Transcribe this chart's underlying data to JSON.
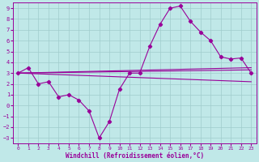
{
  "xlabel": "Windchill (Refroidissement éolien,°C)",
  "background_color": "#c0e8e8",
  "grid_color": "#a0cccc",
  "line_color": "#990099",
  "xlim": [
    -0.5,
    23.5
  ],
  "ylim": [
    -3.5,
    9.5
  ],
  "yticks": [
    -3,
    -2,
    -1,
    0,
    1,
    2,
    3,
    4,
    5,
    6,
    7,
    8,
    9
  ],
  "xticks": [
    0,
    1,
    2,
    3,
    4,
    5,
    6,
    7,
    8,
    9,
    10,
    11,
    12,
    13,
    14,
    15,
    16,
    17,
    18,
    19,
    20,
    21,
    22,
    23
  ],
  "main_x": [
    0,
    1,
    2,
    3,
    4,
    5,
    6,
    7,
    8,
    9,
    10,
    11,
    12,
    13,
    14,
    15,
    16,
    17,
    18,
    19,
    20,
    21,
    22,
    23
  ],
  "main_y": [
    3.0,
    3.5,
    2.0,
    2.2,
    0.8,
    1.0,
    0.5,
    -0.5,
    -3.0,
    -1.5,
    1.5,
    3.0,
    3.0,
    5.5,
    7.5,
    9.0,
    9.2,
    7.8,
    6.8,
    6.0,
    4.5,
    4.3,
    4.4,
    3.0
  ],
  "trend1_x": [
    0,
    23
  ],
  "trend1_y": [
    3.0,
    3.3
  ],
  "trend2_x": [
    0,
    23
  ],
  "trend2_y": [
    3.0,
    3.5
  ],
  "trend3_x": [
    0,
    23
  ],
  "trend3_y": [
    3.0,
    2.2
  ]
}
